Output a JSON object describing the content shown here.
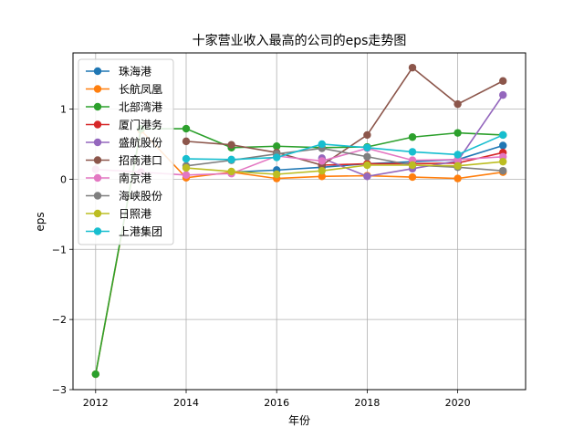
{
  "chart_data": {
    "type": "line",
    "title": "十家营业收入最高的公司的eps走势图",
    "xlabel": "年份",
    "ylabel": "eps",
    "xlim": [
      2011.5,
      2021.5
    ],
    "ylim": [
      -3.0,
      1.8
    ],
    "x_ticks": [
      2012,
      2014,
      2016,
      2018,
      2020
    ],
    "y_ticks": [
      -3,
      -2,
      -1,
      0,
      1
    ],
    "grid": true,
    "legend_position": "upper-left",
    "x": [
      2012,
      2013,
      2014,
      2015,
      2016,
      2017,
      2018,
      2019,
      2020,
      2021
    ],
    "series": [
      {
        "name": "珠海港",
        "color": "#1f77b4",
        "values": [
          null,
          null,
          null,
          0.1,
          0.13,
          0.17,
          0.22,
          0.25,
          0.28,
          0.48
        ]
      },
      {
        "name": "长航凤凰",
        "color": "#ff7f0e",
        "values": [
          -2.78,
          0.7,
          0.02,
          0.1,
          0.01,
          0.04,
          0.05,
          0.03,
          0.01,
          0.1
        ]
      },
      {
        "name": "北部湾港",
        "color": "#2ca02c",
        "values": [
          -2.78,
          0.72,
          0.72,
          0.45,
          0.47,
          0.45,
          0.46,
          0.6,
          0.66,
          0.63
        ]
      },
      {
        "name": "厦门港务",
        "color": "#d62728",
        "values": [
          null,
          null,
          null,
          null,
          null,
          0.2,
          0.22,
          0.22,
          0.23,
          0.38
        ]
      },
      {
        "name": "盛航股份",
        "color": "#9467bd",
        "values": [
          null,
          null,
          null,
          null,
          null,
          0.3,
          0.04,
          0.15,
          0.26,
          1.2
        ]
      },
      {
        "name": "招商港口",
        "color": "#8c564b",
        "values": [
          null,
          null,
          0.54,
          0.49,
          0.38,
          0.2,
          0.63,
          1.59,
          1.07,
          1.4
        ]
      },
      {
        "name": "南京港",
        "color": "#e377c2",
        "values": [
          0.14,
          0.1,
          0.06,
          0.08,
          0.33,
          0.26,
          0.44,
          0.27,
          0.28,
          0.32
        ]
      },
      {
        "name": "海峡股份",
        "color": "#7f7f7f",
        "values": [
          null,
          null,
          0.19,
          0.27,
          0.36,
          0.44,
          0.32,
          0.2,
          0.17,
          0.12
        ]
      },
      {
        "name": "日照港",
        "color": "#bcbd22",
        "values": [
          null,
          null,
          0.16,
          0.11,
          0.07,
          0.12,
          0.2,
          0.2,
          0.19,
          0.25
        ]
      },
      {
        "name": "上港集团",
        "color": "#17becf",
        "values": [
          null,
          null,
          0.29,
          0.28,
          0.31,
          0.5,
          0.45,
          0.39,
          0.35,
          0.63
        ]
      }
    ]
  }
}
